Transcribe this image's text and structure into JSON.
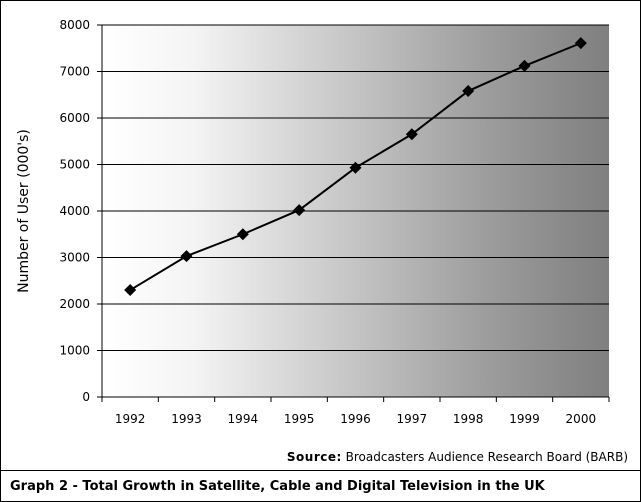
{
  "chart_data": {
    "type": "line",
    "title": "",
    "xlabel": "",
    "ylabel": "Number of User (000's)",
    "categories": [
      "1992",
      "1993",
      "1994",
      "1995",
      "1996",
      "1997",
      "1998",
      "1999",
      "2000"
    ],
    "series": [
      {
        "values": [
          2300,
          3030,
          3500,
          4020,
          4930,
          5650,
          6580,
          7120,
          7610
        ]
      }
    ],
    "ylim": [
      0,
      8000
    ],
    "yticks": [
      "0",
      "1000",
      "2000",
      "3000",
      "4000",
      "5000",
      "6000",
      "7000",
      "8000"
    ],
    "grid": true,
    "marker": "diamond",
    "line_color": "#000000",
    "marker_color": "#000000",
    "plot_background": "gradient white to #808080"
  },
  "source": {
    "label": "Source:",
    "text": "Broadcasters Audience Research Board (BARB)"
  },
  "caption": "Graph 2 - Total Growth in Satellite, Cable and Digital Television in the UK"
}
